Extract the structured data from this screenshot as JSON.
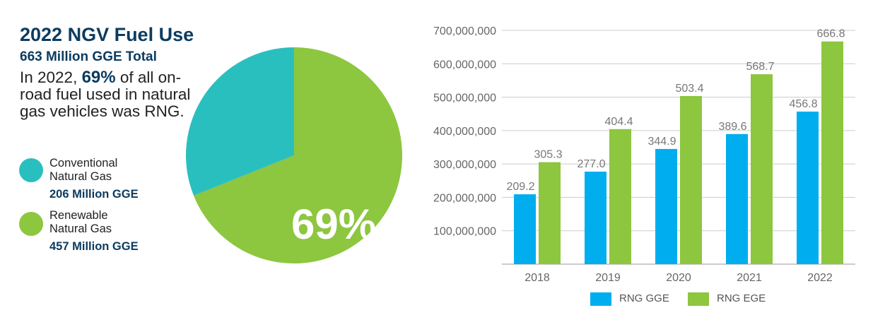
{
  "left_panel": {
    "title": "2022 NGV Fuel Use",
    "subtitle": "663 Million GGE Total",
    "desc_pre": "In 2022, ",
    "desc_highlight": "69%",
    "desc_post": " of all on-road fuel used in natural gas vehicles was RNG.",
    "legend": [
      {
        "label_line1": "Conventional",
        "label_line2": "Natural Gas",
        "value": "206 Million GGE",
        "color": "#2abfbf"
      },
      {
        "label_line1": "Renewable",
        "label_line2": "Natural Gas",
        "value": "457 Million GGE",
        "color": "#8dc63f"
      }
    ]
  },
  "colors": {
    "conventional": "#2abfbf",
    "renewable": "#8dc63f",
    "rng_gge": "#00aeef",
    "rng_ege": "#8dc63f"
  },
  "chart_data": [
    {
      "type": "pie",
      "slices": [
        {
          "label": "Conventional Natural Gas",
          "value": 206
        },
        {
          "label": "Renewable Natural Gas",
          "value": 457
        }
      ],
      "center_label": "69%"
    },
    {
      "type": "bar",
      "categories": [
        "2018",
        "2019",
        "2020",
        "2021",
        "2022"
      ],
      "series": [
        {
          "name": "RNG GGE",
          "values": [
            209200000,
            277000000,
            344900000,
            389600000,
            456800000
          ],
          "labels": [
            "209.2",
            "277.0",
            "344.9",
            "389.6",
            "456.8"
          ]
        },
        {
          "name": "RNG EGE",
          "values": [
            305300000,
            404400000,
            503400000,
            568700000,
            666800000
          ],
          "labels": [
            "305.3",
            "404.4",
            "503.4",
            "568.7",
            "666.8"
          ]
        }
      ],
      "ylim": [
        0,
        700000000
      ],
      "yticks": [
        "100,000,000",
        "200,000,000",
        "300,000,000",
        "400,000,000",
        "500,000,000",
        "600,000,000",
        "700,000,000"
      ],
      "ytick_values": [
        100000000,
        200000000,
        300000000,
        400000000,
        500000000,
        600000000,
        700000000
      ],
      "grid": true,
      "legend_position": "bottom"
    }
  ]
}
